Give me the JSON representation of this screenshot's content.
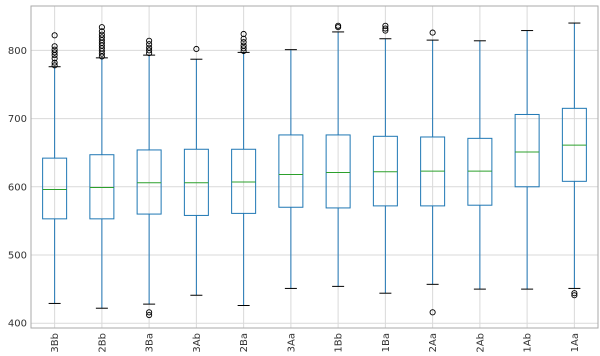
{
  "chart_data": {
    "type": "box",
    "title": "",
    "xlabel": "",
    "ylabel": "",
    "ylim": [
      393,
      865
    ],
    "yticks": [
      400,
      500,
      600,
      700,
      800
    ],
    "grid": true,
    "colors": {
      "box": "#1f77b4",
      "median": "#2ca02c",
      "whisker": "#1f77b4",
      "cap": "#000000",
      "flier": "#000000",
      "grid": "#d9d9d9",
      "frame": "#aaaaaa"
    },
    "categories": [
      "3Bb",
      "2Bb",
      "3Ba",
      "3Ab",
      "2Ba",
      "3Aa",
      "1Bb",
      "1Ba",
      "2Aa",
      "2Ab",
      "1Ab",
      "1Aa"
    ],
    "boxes": [
      {
        "name": "3Bb",
        "whislo": 429,
        "q1": 553,
        "med": 596,
        "q3": 642,
        "whishi": 776,
        "fliers": [
          778,
          782,
          788,
          793,
          797,
          801,
          806,
          822
        ]
      },
      {
        "name": "2Bb",
        "whislo": 422,
        "q1": 553,
        "med": 599,
        "q3": 647,
        "whishi": 789,
        "fliers": [
          791,
          795,
          799,
          803,
          807,
          811,
          815,
          819,
          823,
          828,
          834
        ]
      },
      {
        "name": "3Ba",
        "whislo": 428,
        "q1": 560,
        "med": 606,
        "q3": 654,
        "whishi": 793,
        "fliers": [
          412,
          416,
          796,
          800,
          804,
          809,
          814
        ]
      },
      {
        "name": "3Ab",
        "whislo": 441,
        "q1": 558,
        "med": 606,
        "q3": 655,
        "whishi": 787,
        "fliers": [
          802
        ]
      },
      {
        "name": "2Ba",
        "whislo": 426,
        "q1": 561,
        "med": 607,
        "q3": 655,
        "whishi": 797,
        "fliers": [
          799,
          803,
          807,
          812,
          817,
          824
        ]
      },
      {
        "name": "3Aa",
        "whislo": 451,
        "q1": 570,
        "med": 618,
        "q3": 676,
        "whishi": 801,
        "fliers": []
      },
      {
        "name": "1Bb",
        "whislo": 454,
        "q1": 569,
        "med": 621,
        "q3": 676,
        "whishi": 827,
        "fliers": [
          834,
          836
        ]
      },
      {
        "name": "1Ba",
        "whislo": 444,
        "q1": 572,
        "med": 622,
        "q3": 674,
        "whishi": 817,
        "fliers": [
          829,
          832,
          836
        ]
      },
      {
        "name": "2Aa",
        "whislo": 457,
        "q1": 572,
        "med": 623,
        "q3": 673,
        "whishi": 815,
        "fliers": [
          416,
          826
        ]
      },
      {
        "name": "2Ab",
        "whislo": 450,
        "q1": 573,
        "med": 623,
        "q3": 671,
        "whishi": 814,
        "fliers": []
      },
      {
        "name": "1Ab",
        "whislo": 450,
        "q1": 600,
        "med": 651,
        "q3": 706,
        "whishi": 829,
        "fliers": []
      },
      {
        "name": "1Aa",
        "whislo": 451,
        "q1": 608,
        "med": 661,
        "q3": 715,
        "whishi": 840,
        "fliers": [
          441,
          444
        ]
      }
    ]
  }
}
